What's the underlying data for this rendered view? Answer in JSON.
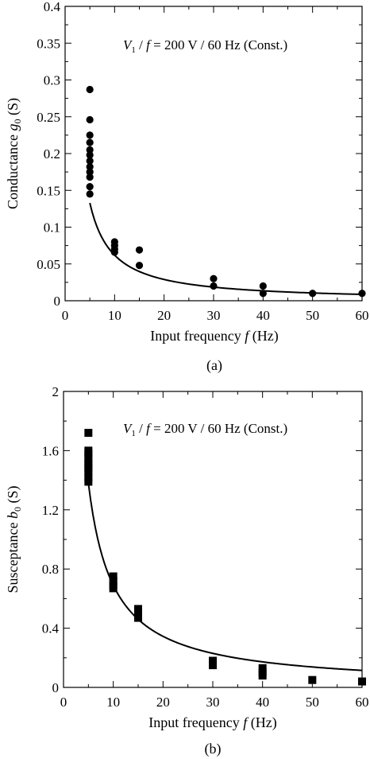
{
  "chart_data": [
    {
      "type": "scatter",
      "caption": "(a)",
      "xlabel": "Input frequency f  (Hz)",
      "ylabel": "Conductance g0 (S)",
      "annotation": "V1 / f = 200 V / 60 Hz (Const.)",
      "xlim": [
        0,
        60
      ],
      "ylim": [
        0,
        0.4
      ],
      "xticks": [
        0,
        10,
        20,
        30,
        40,
        50,
        60
      ],
      "xtick_labels": [
        "0",
        "10",
        "20",
        "30",
        "40",
        "50",
        "60"
      ],
      "yticks": [
        0,
        0.05,
        0.1,
        0.15,
        0.2,
        0.25,
        0.3,
        0.35,
        0.4
      ],
      "ytick_labels": [
        "0",
        "0.05",
        "0.1",
        "0.15",
        "0.2",
        "0.25",
        "0.3",
        "0.35",
        "0.4"
      ],
      "marker": "circle",
      "points": [
        [
          5,
          0.287
        ],
        [
          5,
          0.246
        ],
        [
          5,
          0.225
        ],
        [
          5,
          0.215
        ],
        [
          5,
          0.205
        ],
        [
          5,
          0.198
        ],
        [
          5,
          0.19
        ],
        [
          5,
          0.182
        ],
        [
          5,
          0.175
        ],
        [
          5,
          0.168
        ],
        [
          5,
          0.155
        ],
        [
          5,
          0.145
        ],
        [
          10,
          0.08
        ],
        [
          10,
          0.075
        ],
        [
          10,
          0.07
        ],
        [
          10,
          0.066
        ],
        [
          15,
          0.069
        ],
        [
          15,
          0.048
        ],
        [
          30,
          0.03
        ],
        [
          30,
          0.02
        ],
        [
          40,
          0.02
        ],
        [
          40,
          0.01
        ],
        [
          50,
          0.01
        ],
        [
          60,
          0.01
        ]
      ],
      "fit_curve": {
        "type": "power",
        "a": 0.78,
        "b": -1.1,
        "x_from": 5,
        "x_to": 60
      }
    },
    {
      "type": "scatter",
      "caption": "(b)",
      "xlabel": "Input frequency f  (Hz)",
      "ylabel": "Susceptance b0 (S)",
      "annotation": "V1 / f = 200 V / 60 Hz (Const.)",
      "xlim": [
        0,
        60
      ],
      "ylim": [
        0,
        2
      ],
      "xticks": [
        0,
        10,
        20,
        30,
        40,
        50,
        60
      ],
      "xtick_labels": [
        "0",
        "10",
        "20",
        "30",
        "40",
        "50",
        "60"
      ],
      "yticks": [
        0,
        0.4,
        0.8,
        1.2,
        1.6,
        2
      ],
      "ytick_labels": [
        "0",
        "0.4",
        "0.8",
        "1.2",
        "1.6",
        "2"
      ],
      "marker": "square",
      "points": [
        [
          5,
          1.72
        ],
        [
          5,
          1.6
        ],
        [
          5,
          1.58
        ],
        [
          5,
          1.55
        ],
        [
          5,
          1.52
        ],
        [
          5,
          1.5
        ],
        [
          5,
          1.48
        ],
        [
          5,
          1.45
        ],
        [
          5,
          1.42
        ],
        [
          5,
          1.39
        ],
        [
          10,
          0.75
        ],
        [
          10,
          0.72
        ],
        [
          10,
          0.69
        ],
        [
          10,
          0.67
        ],
        [
          15,
          0.53
        ],
        [
          15,
          0.5
        ],
        [
          15,
          0.47
        ],
        [
          30,
          0.18
        ],
        [
          30,
          0.15
        ],
        [
          40,
          0.13
        ],
        [
          40,
          0.1
        ],
        [
          40,
          0.08
        ],
        [
          50,
          0.05
        ],
        [
          60,
          0.04
        ]
      ],
      "fit_curve": {
        "type": "power",
        "a": 6.9,
        "b": -1.0,
        "x_from": 5,
        "x_to": 60
      }
    }
  ]
}
